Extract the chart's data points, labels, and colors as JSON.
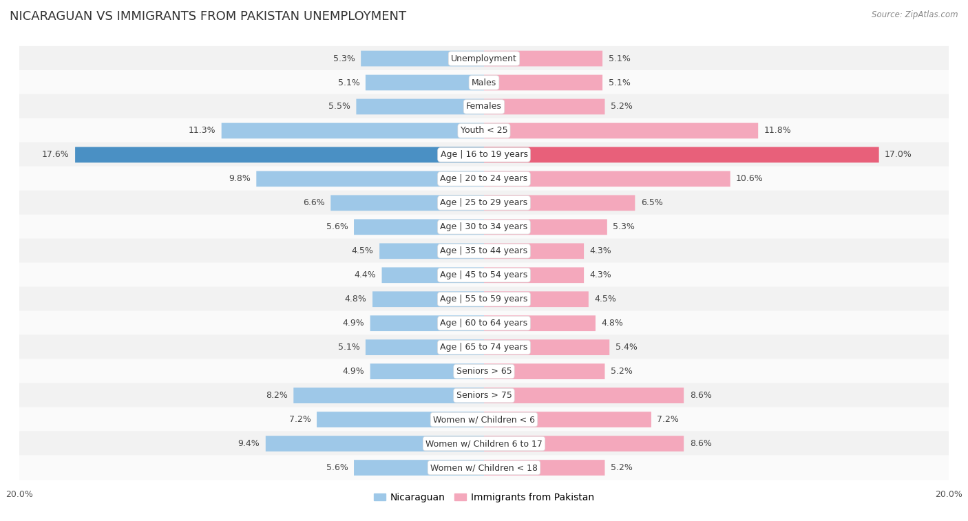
{
  "title": "NICARAGUAN VS IMMIGRANTS FROM PAKISTAN UNEMPLOYMENT",
  "source": "Source: ZipAtlas.com",
  "categories": [
    "Unemployment",
    "Males",
    "Females",
    "Youth < 25",
    "Age | 16 to 19 years",
    "Age | 20 to 24 years",
    "Age | 25 to 29 years",
    "Age | 30 to 34 years",
    "Age | 35 to 44 years",
    "Age | 45 to 54 years",
    "Age | 55 to 59 years",
    "Age | 60 to 64 years",
    "Age | 65 to 74 years",
    "Seniors > 65",
    "Seniors > 75",
    "Women w/ Children < 6",
    "Women w/ Children 6 to 17",
    "Women w/ Children < 18"
  ],
  "nicaraguan": [
    5.3,
    5.1,
    5.5,
    11.3,
    17.6,
    9.8,
    6.6,
    5.6,
    4.5,
    4.4,
    4.8,
    4.9,
    5.1,
    4.9,
    8.2,
    7.2,
    9.4,
    5.6
  ],
  "pakistan": [
    5.1,
    5.1,
    5.2,
    11.8,
    17.0,
    10.6,
    6.5,
    5.3,
    4.3,
    4.3,
    4.5,
    4.8,
    5.4,
    5.2,
    8.6,
    7.2,
    8.6,
    5.2
  ],
  "nicaraguan_color": "#9ec8e8",
  "pakistan_color": "#f4a8bc",
  "nicaragua_highlight_color": "#4a90c4",
  "pakistan_highlight_color": "#e8607a",
  "highlight_row": 4,
  "axis_max": 20.0,
  "bg_color": "#ffffff",
  "row_bg_odd": "#f2f2f2",
  "row_bg_even": "#fafafa",
  "label_fontsize": 9.0,
  "value_fontsize": 9.0,
  "title_fontsize": 13,
  "legend_labels": [
    "Nicaraguan",
    "Immigrants from Pakistan"
  ]
}
